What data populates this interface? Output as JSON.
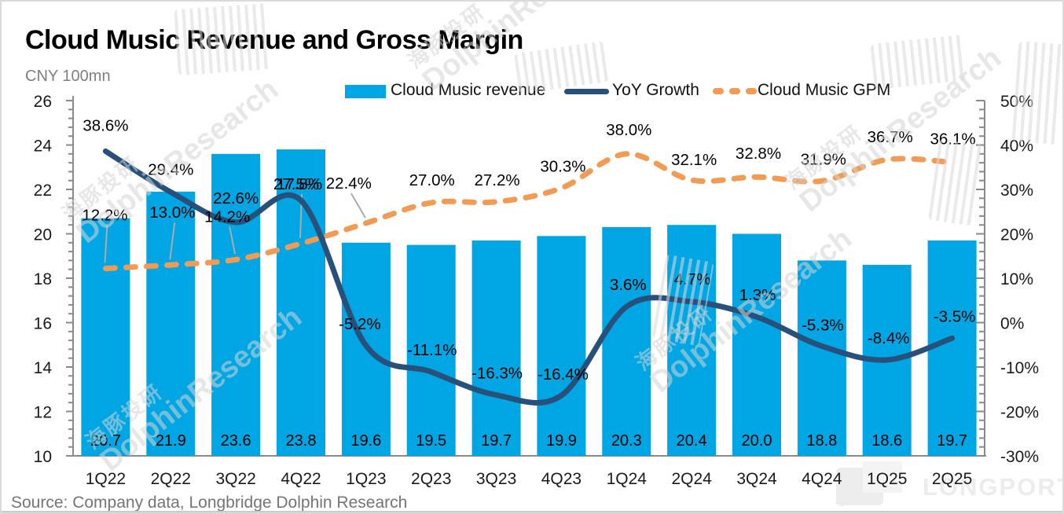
{
  "header": {
    "title": "Cloud Music Revenue and Gross Margin",
    "unit_label": "CNY 100mn",
    "source": "Source: Company data, Longbridge Dolphin Research"
  },
  "legend": {
    "revenue_label": "Cloud Music revenue",
    "yoy_label": "YoY Growth",
    "gpm_label": "Cloud Music GPM"
  },
  "watermark": {
    "cn": "海豚投研",
    "en": "DolphinResearch",
    "longport": "LONGPORT"
  },
  "chart_data": {
    "type": "bar",
    "title": "Cloud Music Revenue and Gross Margin",
    "categories": [
      "1Q22",
      "2Q22",
      "3Q22",
      "4Q22",
      "1Q23",
      "2Q23",
      "3Q23",
      "4Q23",
      "1Q24",
      "2Q24",
      "3Q24",
      "4Q24",
      "1Q25",
      "2Q25"
    ],
    "series": [
      {
        "name": "Cloud Music revenue",
        "type": "bar",
        "axis": "left",
        "values": [
          20.7,
          21.9,
          23.6,
          23.8,
          19.6,
          19.5,
          19.7,
          19.9,
          20.3,
          20.4,
          20.0,
          18.8,
          18.6,
          19.7
        ],
        "labels": [
          "20.7",
          "21.9",
          "23.6",
          "23.8",
          "19.6",
          "19.5",
          "19.7",
          "19.9",
          "20.3",
          "20.4",
          "20.0",
          "18.8",
          "18.6",
          "19.7"
        ]
      },
      {
        "name": "YoY Growth",
        "type": "line",
        "axis": "right",
        "smooth": true,
        "dashed": false,
        "values": [
          38.6,
          29.4,
          22.6,
          27.5,
          -5.2,
          -11.1,
          -16.3,
          -16.4,
          3.6,
          4.7,
          1.3,
          -5.3,
          -8.4,
          -3.5
        ],
        "labels": [
          "38.6%",
          "29.4%",
          "22.6%",
          "27.5%",
          "-5.2%",
          "-11.1%",
          "-16.3%",
          "-16.4%",
          "3.6%",
          "4.7%",
          "1.3%",
          "-5.3%",
          "-8.4%",
          "-3.5%"
        ],
        "label_offsets": [
          [
            0,
            -33
          ],
          [
            0,
            -29
          ],
          [
            0,
            -31
          ],
          [
            -6,
            -21
          ],
          [
            -8,
            -28
          ],
          [
            1,
            -28
          ],
          [
            1,
            -28
          ],
          [
            2,
            -27
          ],
          [
            2,
            -28
          ],
          [
            1,
            -29
          ],
          [
            1,
            -28
          ],
          [
            1,
            -27
          ],
          [
            2,
            -28
          ],
          [
            3,
            -28
          ]
        ],
        "leaders": [
          false,
          false,
          false,
          false,
          false,
          false,
          false,
          false,
          false,
          false,
          false,
          false,
          false,
          false
        ]
      },
      {
        "name": "Cloud Music GPM",
        "type": "line",
        "axis": "right",
        "smooth": true,
        "dashed": true,
        "values": [
          12.2,
          13.0,
          14.2,
          17.8,
          22.4,
          27.0,
          27.2,
          30.3,
          38.0,
          32.1,
          32.8,
          31.9,
          36.7,
          36.1
        ],
        "labels": [
          "12.2%",
          "13.0%",
          "14.2%",
          "17.8%",
          "22.4%",
          "27.0%",
          "27.2%",
          "30.3%",
          "38.0%",
          "32.1%",
          "32.8%",
          "31.9%",
          "36.7%",
          "36.1%"
        ],
        "label_offsets": [
          [
            -1,
            -68
          ],
          [
            2,
            -67
          ],
          [
            -11,
            -55
          ],
          [
            -2,
            -76
          ],
          [
            -22,
            -51
          ],
          [
            1,
            -29
          ],
          [
            1,
            -28
          ],
          [
            2,
            -28
          ],
          [
            3,
            -31
          ],
          [
            3,
            -26
          ],
          [
            2,
            -30
          ],
          [
            2,
            -28
          ],
          [
            4,
            -29
          ],
          [
            1,
            -30
          ]
        ],
        "leaders": [
          true,
          true,
          true,
          true,
          true,
          false,
          false,
          false,
          false,
          false,
          false,
          false,
          false,
          false
        ]
      }
    ],
    "left_axis": {
      "min": 10,
      "max": 26,
      "step": 2,
      "minor_step": 0.4,
      "ticks": [
        "26",
        "24",
        "22",
        "20",
        "18",
        "16",
        "14",
        "12",
        "10"
      ]
    },
    "right_axis": {
      "min": -30,
      "max": 50,
      "step": 10,
      "minor_step": 2,
      "ticks": [
        "50%",
        "40%",
        "30%",
        "20%",
        "10%",
        "0%",
        "-10%",
        "-20%",
        "-30%"
      ]
    },
    "grid": false,
    "legend_position": "top",
    "colors": {
      "bar": "#00A6E4",
      "yoy_line": "#27507A",
      "gpm_line": "#F29B55",
      "leader": "#ABABAB",
      "axis": "#8A8A8A",
      "label_text": "#000000",
      "axis_text": "#1A1A1A"
    }
  }
}
